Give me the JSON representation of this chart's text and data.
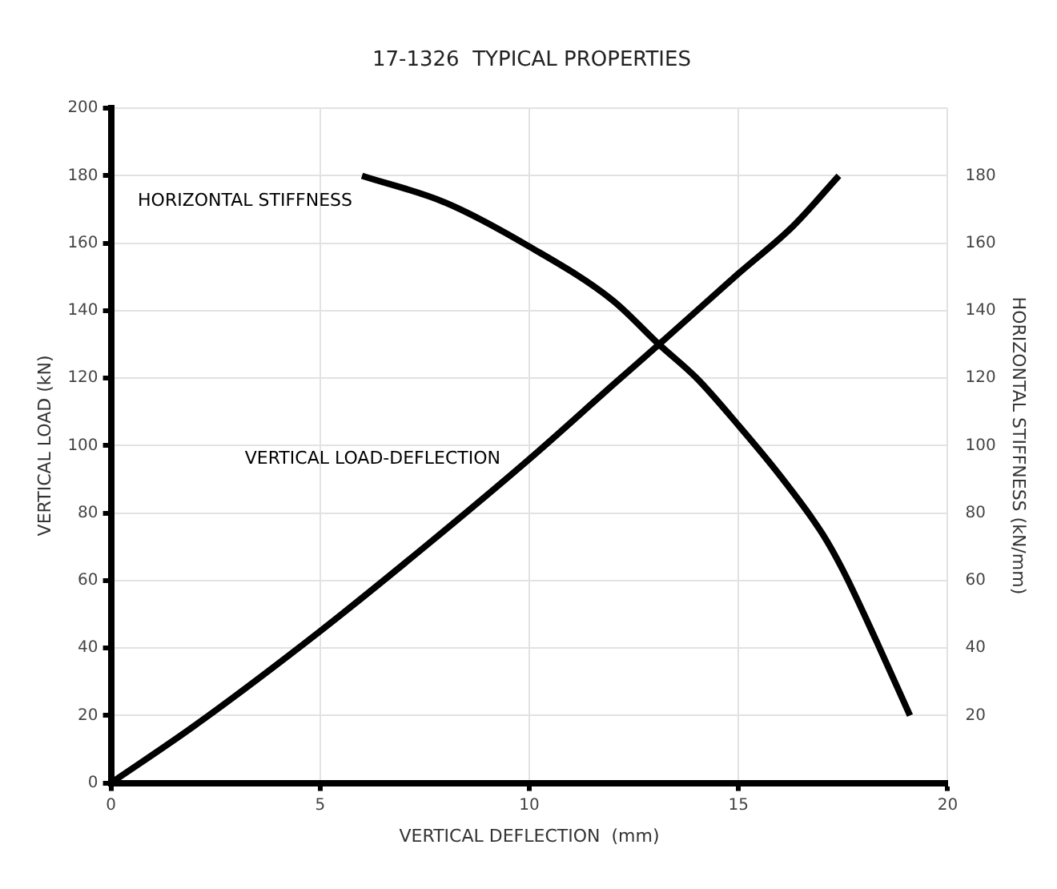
{
  "chart_data": {
    "type": "line",
    "title": "17-1326  TYPICAL PROPERTIES",
    "xlabel": "VERTICAL DEFLECTION  (mm)",
    "ylabel": "VERTICAL LOAD (kN)",
    "y2label": "HORIZONTAL STIFFNESS (kN/mm)",
    "xlim": [
      0,
      20
    ],
    "xticks": [
      0,
      5,
      10,
      15,
      20
    ],
    "ylim": [
      0,
      200
    ],
    "yticks": [
      0,
      20,
      40,
      60,
      80,
      100,
      120,
      140,
      160,
      180,
      200
    ],
    "y2lim": [
      0,
      200
    ],
    "y2ticks": [
      20,
      40,
      60,
      80,
      100,
      120,
      140,
      160,
      180
    ],
    "grid": true,
    "legend": false,
    "marker": "none",
    "line_style": "solid",
    "series": [
      {
        "name": "HORIZONTAL STIFFNESS",
        "color": "#000000",
        "axis": "y2",
        "x": [
          6,
          8,
          10,
          12,
          13.1,
          14,
          15,
          16,
          17,
          17.5,
          18.3,
          19.1
        ],
        "values": [
          180,
          172,
          159,
          143,
          130,
          120,
          106,
          91,
          74,
          63,
          42,
          20
        ]
      },
      {
        "name": "VERTICAL LOAD-DEFLECTION",
        "color": "#000000",
        "x": [
          0,
          2,
          5,
          7.5,
          10,
          12,
          13.1,
          15,
          16.3,
          17.4
        ],
        "values": [
          0,
          17,
          45,
          70,
          96,
          118,
          130,
          151,
          165,
          180
        ]
      }
    ]
  }
}
